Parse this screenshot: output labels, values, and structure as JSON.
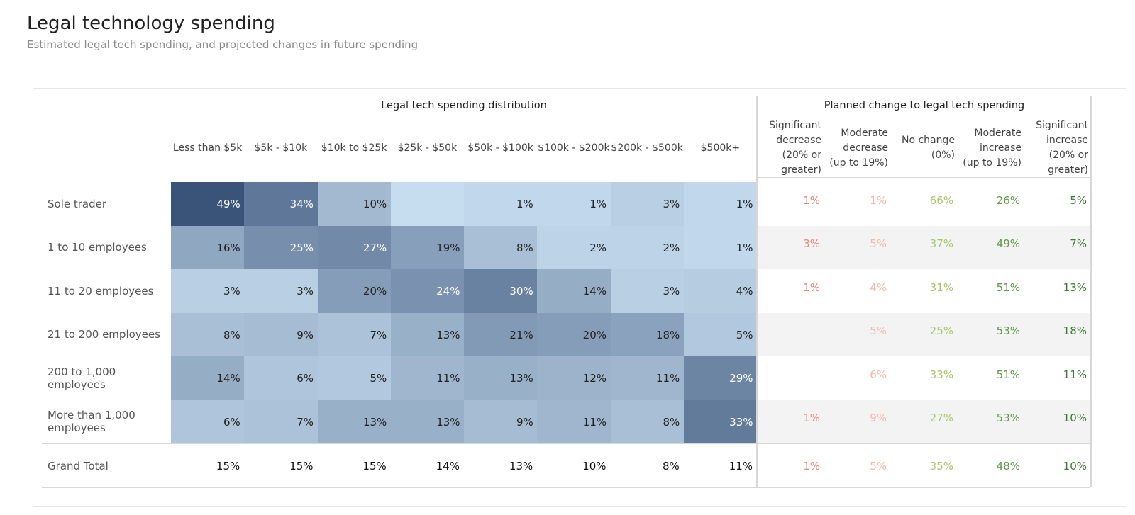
{
  "title": "Legal technology spending",
  "subtitle": "Estimated legal tech spending, and projected changes in future spending",
  "chart_data": {
    "type": "heatmap",
    "groups": {
      "distribution": "Legal tech spending distribution",
      "change": "Planned change to legal tech spending"
    },
    "rows": [
      "Sole trader",
      "1 to 10 employees",
      "11 to 20 employees",
      "21 to 200 employees",
      "200 to 1,000 employees",
      "More than 1,000 employees"
    ],
    "total_label": "Grand Total",
    "distribution_columns": [
      "Less than $5k",
      "$5k - $10k",
      "$10k to $25k",
      "$25k - $50k",
      "$50k - $100k",
      "$100k - $200k",
      "$200k - $500k",
      "$500k+"
    ],
    "distribution_values": [
      [
        49,
        34,
        10,
        null,
        1,
        1,
        3,
        1
      ],
      [
        16,
        25,
        27,
        19,
        8,
        2,
        2,
        1
      ],
      [
        3,
        3,
        20,
        24,
        30,
        14,
        3,
        4
      ],
      [
        8,
        9,
        7,
        13,
        21,
        20,
        18,
        5
      ],
      [
        14,
        6,
        5,
        11,
        13,
        12,
        11,
        29
      ],
      [
        6,
        7,
        13,
        13,
        9,
        11,
        8,
        33
      ]
    ],
    "distribution_totals": [
      15,
      15,
      15,
      14,
      13,
      10,
      8,
      11
    ],
    "change_columns": [
      [
        "Significant",
        "decrease",
        "(20% or",
        "greater)"
      ],
      [
        "Moderate",
        "decrease",
        "(up to 19%)"
      ],
      [
        "No change",
        "(0%)"
      ],
      [
        "Moderate",
        "increase",
        "(up to 19%)"
      ],
      [
        "Significant",
        "increase",
        "(20% or",
        "greater)"
      ]
    ],
    "change_values": [
      [
        1,
        1,
        66,
        26,
        5
      ],
      [
        3,
        5,
        37,
        49,
        7
      ],
      [
        1,
        4,
        31,
        51,
        13
      ],
      [
        null,
        5,
        25,
        53,
        18
      ],
      [
        null,
        6,
        33,
        51,
        11
      ],
      [
        1,
        9,
        27,
        53,
        10
      ]
    ],
    "change_totals": [
      1,
      5,
      35,
      48,
      10
    ],
    "change_colors": [
      "#e8857a",
      "#f2b8ad",
      "#a9c56a",
      "#5e9a48",
      "#3f7a37"
    ],
    "heat_scale": {
      "low": "#c6dcef",
      "high": "#3a5479"
    },
    "value_suffix": "%"
  }
}
